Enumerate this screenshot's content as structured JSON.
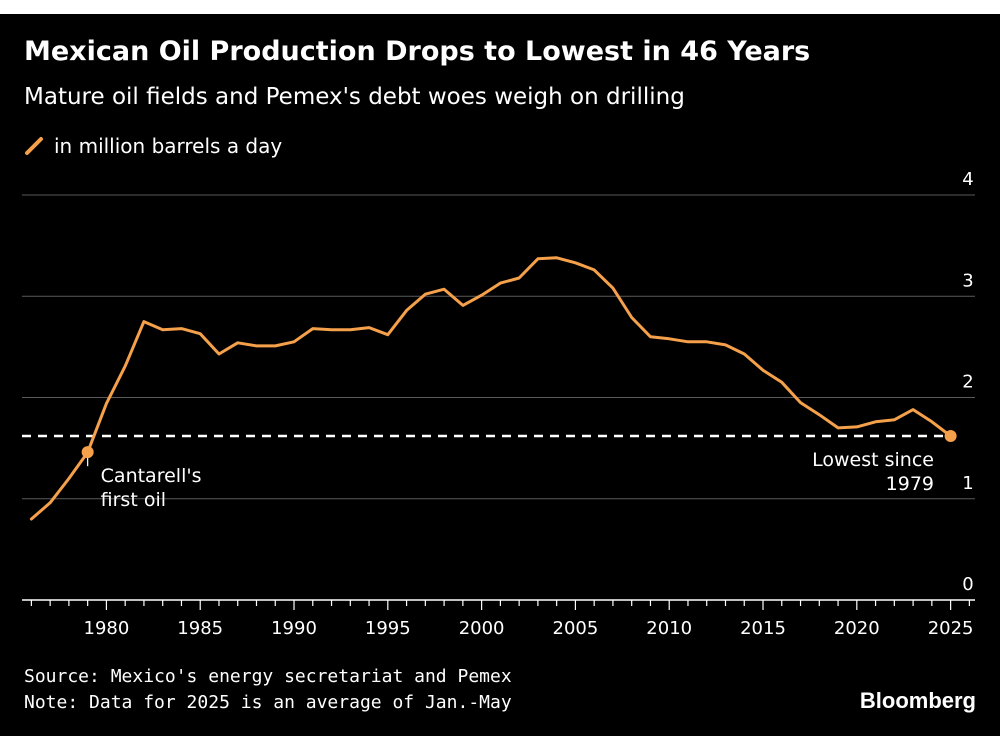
{
  "title": "Mexican Oil Production Drops to Lowest in 46 Years",
  "subtitle": "Mature oil fields and Pemex's debt woes weigh on drilling",
  "legend": {
    "label": "in million barrels a day",
    "color": "#F5A04A"
  },
  "source": "Source: Mexico's energy secretariat and Pemex",
  "note": "Note: Data for 2025 is an average of Jan.-May",
  "brand": "Bloomberg",
  "chart_data": {
    "type": "line",
    "title": "Mexican Oil Production Drops to Lowest in 46 Years",
    "ylabel": "in million barrels a day",
    "xlim": [
      1975.5,
      2026.3
    ],
    "ylim": [
      0,
      4
    ],
    "x_ticks": [
      1980,
      1985,
      1990,
      1995,
      2000,
      2005,
      2010,
      2015,
      2020,
      2025
    ],
    "y_ticks": [
      0,
      1,
      2,
      3,
      4
    ],
    "grid": true,
    "series": [
      {
        "name": "in million barrels a day",
        "color": "#F5A04A",
        "x": [
          1976,
          1977,
          1978,
          1979,
          1980,
          1981,
          1982,
          1983,
          1984,
          1985,
          1986,
          1987,
          1988,
          1989,
          1990,
          1991,
          1992,
          1993,
          1994,
          1995,
          1996,
          1997,
          1998,
          1999,
          2000,
          2001,
          2002,
          2003,
          2004,
          2005,
          2006,
          2007,
          2008,
          2009,
          2010,
          2011,
          2012,
          2013,
          2014,
          2015,
          2016,
          2017,
          2018,
          2019,
          2020,
          2021,
          2022,
          2023,
          2024,
          2025
        ],
        "y": [
          0.8,
          0.96,
          1.2,
          1.46,
          1.94,
          2.31,
          2.75,
          2.67,
          2.68,
          2.63,
          2.43,
          2.54,
          2.51,
          2.51,
          2.55,
          2.68,
          2.67,
          2.67,
          2.69,
          2.62,
          2.86,
          3.02,
          3.07,
          2.91,
          3.01,
          3.13,
          3.18,
          3.37,
          3.38,
          3.33,
          3.26,
          3.08,
          2.79,
          2.6,
          2.58,
          2.55,
          2.55,
          2.52,
          2.43,
          2.27,
          2.15,
          1.95,
          1.83,
          1.7,
          1.71,
          1.76,
          1.78,
          1.88,
          1.76,
          1.62
        ]
      }
    ],
    "reference_line": {
      "value": 1.62,
      "style": "dashed",
      "color": "#FFFFFF"
    },
    "annotations": [
      {
        "x": 1979,
        "y": 1.46,
        "label_lines": [
          "Cantarell's",
          "first oil"
        ]
      },
      {
        "x": 2025,
        "y": 1.62,
        "label_lines": [
          "Lowest since",
          "1979"
        ]
      }
    ]
  }
}
